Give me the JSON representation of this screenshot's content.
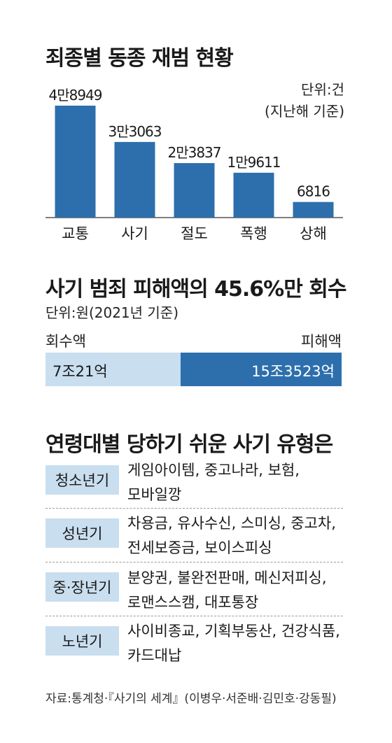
{
  "chart_data": [
    {
      "type": "bar",
      "title": "죄종별 동종 재범 현황",
      "unit_note": "단위:건",
      "base_note": "(지난해 기준)",
      "categories": [
        "교통",
        "사기",
        "절도",
        "폭행",
        "상해"
      ],
      "values": [
        48949,
        33063,
        23837,
        19611,
        6816
      ],
      "value_labels": [
        "4만8949",
        "3만3063",
        "2만3837",
        "1만9611",
        "6816"
      ],
      "ylim": [
        0,
        50000
      ],
      "color": "#2d6fad"
    },
    {
      "type": "bar",
      "title": "사기 범죄 피해액의 45.6%만 회수",
      "unit_note": "단위:원(2021년 기준)",
      "categories": [
        "회수액",
        "피해액"
      ],
      "values": [
        7.0021,
        15.3523
      ],
      "value_labels": [
        "7조21억",
        "15조3523억"
      ],
      "colors": [
        "#c9deef",
        "#2d6fad"
      ]
    },
    {
      "type": "table",
      "title": "연령대별 당하기 쉬운 사기 유형은",
      "rows": [
        {
          "group": "청소년기",
          "lines": [
            "게임아이템, 중고나라, 보험,",
            "모바일깡"
          ]
        },
        {
          "group": "성년기",
          "lines": [
            "차용금, 유사수신, 스미싱, 중고차,",
            "전세보증금, 보이스피싱"
          ]
        },
        {
          "group": "중·장년기",
          "lines": [
            "분양권, 불완전판매, 메신저피싱,",
            "로맨스스캠, 대포통장"
          ]
        },
        {
          "group": "노년기",
          "lines": [
            "사이비종교, 기획부동산, 건강식품,",
            "카드대납"
          ]
        }
      ]
    }
  ],
  "source": "자료:통계청·『사기의 세계』(이병우·서준배·김민호·강동필)"
}
